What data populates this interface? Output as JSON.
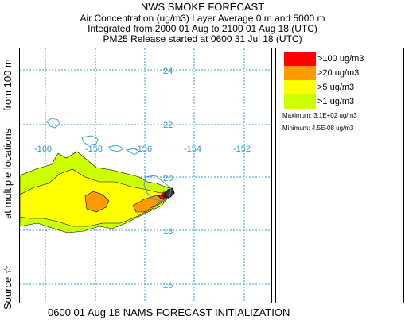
{
  "header": {
    "title": "NWS SMOKE FORECAST",
    "line1": "Air Concentration (ug/m3) Layer Average    0 m and  5000 m",
    "line2": "Integrated from 2000 01 Aug to 2100 01 Aug 18 (UTC)",
    "line3": "PM25 Release started at 0600 31 Jul 18 (UTC)"
  },
  "side_label": {
    "source": "Source ☆",
    "multi": "at multiple locations",
    "from": "from   100 m"
  },
  "footer": "0600 01 Aug 18 NAMS FORECAST INITIALIZATION",
  "map": {
    "lon_labels": [
      "-160",
      "-158",
      "-156",
      "-154",
      "-152"
    ],
    "lat_labels": [
      "24",
      "22",
      "20",
      "18",
      "16"
    ],
    "grid_color": "#3399cc",
    "coast_color": "#3399cc"
  },
  "legend": {
    "items": [
      {
        "label": ">100 ug/m3",
        "color": "#ff0000"
      },
      {
        "label": ">20 ug/m3",
        "color": "#ff9900"
      },
      {
        "label": ">5 ug/m3",
        "color": "#ffff00"
      },
      {
        "label": ">1 ug/m3",
        "color": "#ccff00"
      }
    ],
    "maximum": "Maximum: 3.1E+02 ug/m3",
    "minimum": "Minimum: 4.5E-08 ug/m3"
  }
}
